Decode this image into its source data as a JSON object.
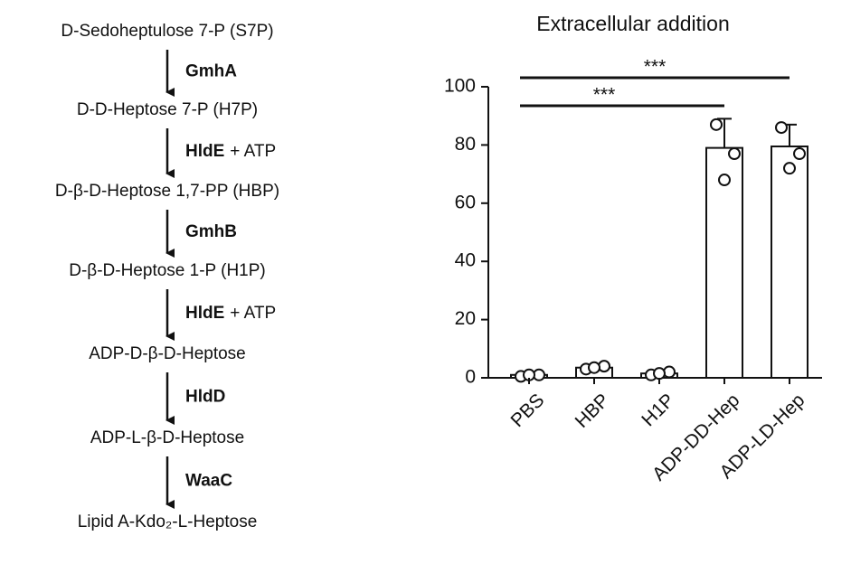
{
  "pathway": {
    "steps": [
      "D-Sedoheptulose 7-P (S7P)",
      "D-D-Heptose 7-P (H7P)",
      "D-β-D-Heptose 1,7-PP (HBP)",
      "D-β-D-Heptose 1-P (H1P)",
      "ADP-D-β-D-Heptose",
      "ADP-L-β-D-Heptose",
      "Lipid A-Kdo₂-L-Heptose"
    ],
    "enzymes": [
      {
        "name": "GmhA"
      },
      {
        "name": "HldE",
        "cofactor": "+ ATP"
      },
      {
        "name": "GmhB"
      },
      {
        "name": "HldE",
        "cofactor": "+ ATP"
      },
      {
        "name": "HldD"
      },
      {
        "name": "WaaC"
      }
    ]
  },
  "chart_data": {
    "type": "bar",
    "title": "Extracellular addition",
    "categories": [
      "PBS",
      "HBP",
      "H1P",
      "ADP-DD-Hep",
      "ADP-LD-Hep"
    ],
    "values": [
      1,
      3.5,
      1.5,
      79,
      79.5
    ],
    "errors": [
      0.5,
      0.5,
      0.5,
      10,
      7.5
    ],
    "points": [
      [
        0.5,
        1,
        1
      ],
      [
        3,
        4,
        3.5
      ],
      [
        1,
        2,
        1.5
      ],
      [
        87,
        77,
        68
      ],
      [
        86,
        77,
        72
      ]
    ],
    "color": "#ffffff",
    "ylim": [
      0,
      100
    ],
    "yticks": [
      0,
      20,
      40,
      60,
      80,
      100
    ],
    "significance": [
      {
        "label": "***",
        "from": "PBS",
        "to": "ADP-LD-Hep"
      },
      {
        "label": "***",
        "from": "PBS",
        "to": "ADP-DD-Hep"
      }
    ]
  }
}
